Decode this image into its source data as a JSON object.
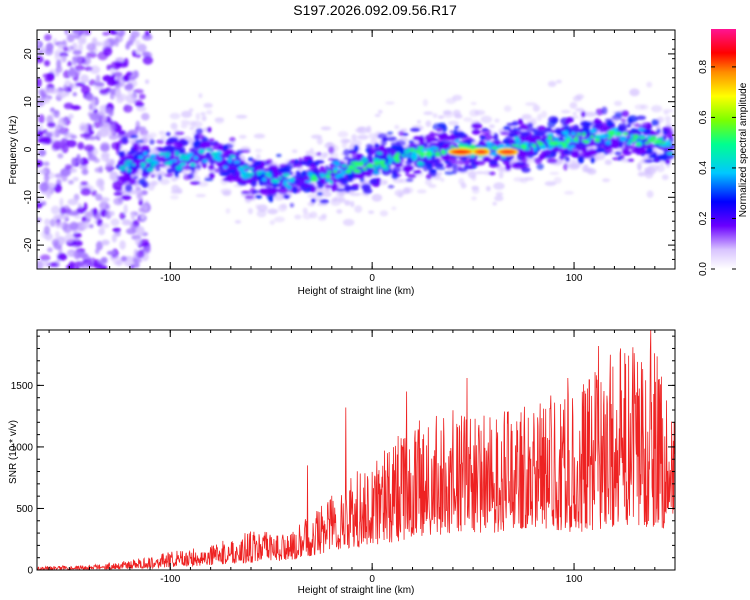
{
  "title": "S197.2026.092.09.56.R17",
  "colors": {
    "snr_line": "#ee2222",
    "spectrogram_low": "#b48cff",
    "spectrogram_mid": "#2d2dff",
    "spectrogram_high": "#ff2020"
  },
  "chart_data": [
    {
      "type": "heatmap",
      "name": "spectrogram",
      "xlabel": "Height of straight line (km)",
      "ylabel": "Frequency (Hz)",
      "xlim": [
        -166,
        150
      ],
      "ylim": [
        -25,
        25
      ],
      "x_ticks": [
        -100,
        0,
        100
      ],
      "y_ticks": [
        -20,
        -10,
        0,
        10,
        20
      ],
      "colorbar": {
        "label": "Normalized spectral amplitude",
        "range": [
          0.0,
          0.95
        ],
        "ticks": [
          "0.0",
          "0.2",
          "0.4",
          "0.6",
          "0.8"
        ]
      },
      "ridge": [
        {
          "x": -125,
          "y": -3
        },
        {
          "x": -100,
          "y": -2
        },
        {
          "x": -80,
          "y": -1
        },
        {
          "x": -60,
          "y": -5
        },
        {
          "x": -40,
          "y": -7
        },
        {
          "x": -20,
          "y": -5
        },
        {
          "x": 0,
          "y": -3
        },
        {
          "x": 20,
          "y": -1
        },
        {
          "x": 40,
          "y": 0
        },
        {
          "x": 60,
          "y": 0
        },
        {
          "x": 80,
          "y": 1
        },
        {
          "x": 100,
          "y": 2
        },
        {
          "x": 120,
          "y": 3
        },
        {
          "x": 148,
          "y": 1
        }
      ],
      "peak_regions": [
        {
          "x_from": 40,
          "x_to": 48,
          "y": -0.5,
          "value": 0.9
        },
        {
          "x_from": 52,
          "x_to": 56,
          "y": -0.5,
          "value": 0.75
        },
        {
          "x_from": 64,
          "x_to": 70,
          "y": -0.5,
          "value": 0.7
        }
      ]
    },
    {
      "type": "line",
      "name": "snr",
      "xlabel": "Height of straight line (km)",
      "ylabel": "SNR (10 * v/v)",
      "xlim": [
        -166,
        150
      ],
      "ylim": [
        0,
        1950
      ],
      "x_ticks": [
        -100,
        0,
        100
      ],
      "y_ticks": [
        0,
        500,
        1000,
        1500
      ],
      "envelope": {
        "x": [
          -166,
          -140,
          -120,
          -100,
          -80,
          -60,
          -40,
          -20,
          0,
          20,
          40,
          60,
          80,
          100,
          120,
          140,
          150
        ],
        "upper": [
          30,
          40,
          80,
          150,
          200,
          320,
          300,
          650,
          900,
          1200,
          1300,
          1250,
          1400,
          1450,
          1800,
          1900,
          1350
        ],
        "lower": [
          0,
          5,
          10,
          20,
          40,
          60,
          80,
          150,
          200,
          250,
          300,
          300,
          350,
          300,
          350,
          350,
          300
        ]
      },
      "peaks": [
        {
          "x": -32,
          "y": 850
        },
        {
          "x": -13,
          "y": 1320
        },
        {
          "x": 17,
          "y": 1450
        },
        {
          "x": 47,
          "y": 1560
        },
        {
          "x": 97,
          "y": 1560
        },
        {
          "x": 112,
          "y": 1820
        },
        {
          "x": 138,
          "y": 1950
        }
      ]
    }
  ]
}
